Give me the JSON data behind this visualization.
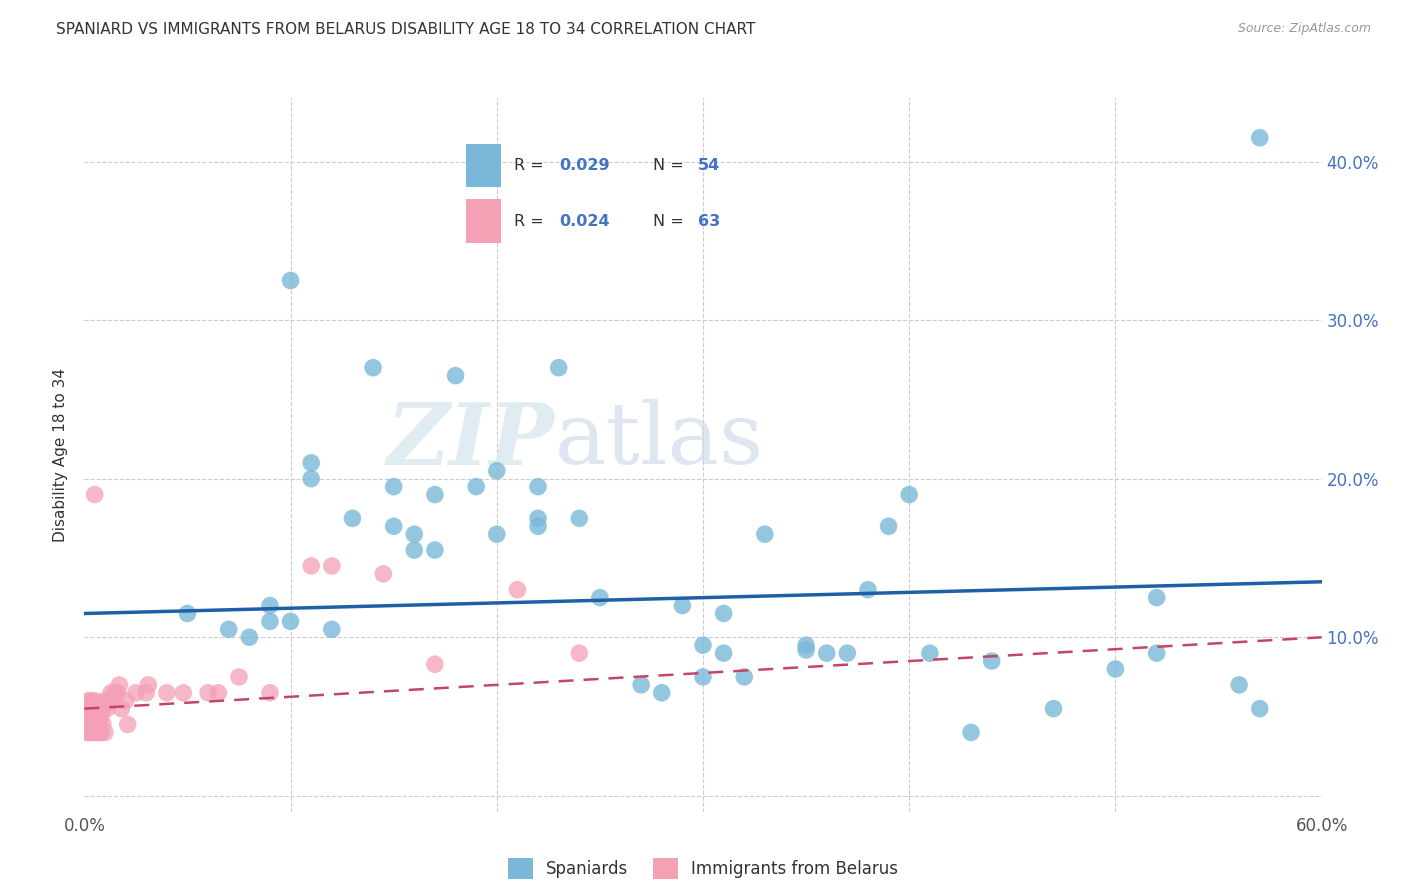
{
  "title": "SPANIARD VS IMMIGRANTS FROM BELARUS DISABILITY AGE 18 TO 34 CORRELATION CHART",
  "source": "Source: ZipAtlas.com",
  "ylabel": "Disability Age 18 to 34",
  "xlim": [
    0.0,
    0.6
  ],
  "ylim": [
    -0.01,
    0.44
  ],
  "xticks": [
    0.0,
    0.1,
    0.2,
    0.3,
    0.4,
    0.5,
    0.6
  ],
  "xticklabels": [
    "0.0%",
    "",
    "",
    "",
    "",
    "",
    "60.0%"
  ],
  "yticks": [
    0.0,
    0.1,
    0.2,
    0.3,
    0.4
  ],
  "yticklabels_right": [
    "",
    "10.0%",
    "20.0%",
    "30.0%",
    "40.0%"
  ],
  "legend_blue_r": "0.029",
  "legend_blue_n": "54",
  "legend_pink_r": "0.024",
  "legend_pink_n": "63",
  "legend_blue_label": "Spaniards",
  "legend_pink_label": "Immigrants from Belarus",
  "blue_color": "#7ab8d9",
  "pink_color": "#f4a0b5",
  "trendline_blue_color": "#1f5fa6",
  "trendline_pink_color": "#c44569",
  "watermark_zip": "ZIP",
  "watermark_atlas": "atlas",
  "background_color": "#ffffff",
  "grid_color": "#cccccc",
  "blue_scatter_x": [
    0.57,
    0.1,
    0.1,
    0.12,
    0.14,
    0.15,
    0.15,
    0.16,
    0.16,
    0.17,
    0.17,
    0.18,
    0.19,
    0.2,
    0.2,
    0.22,
    0.22,
    0.22,
    0.23,
    0.24,
    0.25,
    0.27,
    0.28,
    0.29,
    0.3,
    0.3,
    0.31,
    0.31,
    0.32,
    0.33,
    0.35,
    0.35,
    0.36,
    0.37,
    0.38,
    0.39,
    0.4,
    0.41,
    0.43,
    0.44,
    0.5,
    0.52,
    0.56,
    0.57,
    0.07,
    0.08,
    0.09,
    0.09,
    0.11,
    0.11,
    0.13,
    0.47,
    0.52,
    0.05
  ],
  "blue_scatter_y": [
    0.415,
    0.325,
    0.11,
    0.105,
    0.27,
    0.195,
    0.17,
    0.155,
    0.165,
    0.155,
    0.19,
    0.265,
    0.195,
    0.165,
    0.205,
    0.175,
    0.17,
    0.195,
    0.27,
    0.175,
    0.125,
    0.07,
    0.065,
    0.12,
    0.095,
    0.075,
    0.09,
    0.115,
    0.075,
    0.165,
    0.092,
    0.095,
    0.09,
    0.09,
    0.13,
    0.17,
    0.19,
    0.09,
    0.04,
    0.085,
    0.08,
    0.125,
    0.07,
    0.055,
    0.105,
    0.1,
    0.11,
    0.12,
    0.2,
    0.21,
    0.175,
    0.055,
    0.09,
    0.115
  ],
  "pink_scatter_x": [
    0.001,
    0.001,
    0.001,
    0.001,
    0.002,
    0.002,
    0.002,
    0.002,
    0.002,
    0.003,
    0.003,
    0.003,
    0.003,
    0.003,
    0.004,
    0.004,
    0.004,
    0.004,
    0.005,
    0.005,
    0.005,
    0.005,
    0.005,
    0.006,
    0.006,
    0.006,
    0.007,
    0.007,
    0.007,
    0.007,
    0.008,
    0.008,
    0.008,
    0.009,
    0.009,
    0.01,
    0.01,
    0.011,
    0.012,
    0.013,
    0.014,
    0.015,
    0.016,
    0.017,
    0.018,
    0.02,
    0.021,
    0.025,
    0.03,
    0.031,
    0.04,
    0.048,
    0.06,
    0.065,
    0.075,
    0.09,
    0.11,
    0.12,
    0.145,
    0.17,
    0.21,
    0.24,
    0.005
  ],
  "pink_scatter_y": [
    0.04,
    0.045,
    0.05,
    0.055,
    0.04,
    0.045,
    0.05,
    0.055,
    0.06,
    0.04,
    0.045,
    0.05,
    0.055,
    0.06,
    0.04,
    0.045,
    0.05,
    0.055,
    0.04,
    0.045,
    0.05,
    0.055,
    0.06,
    0.04,
    0.045,
    0.055,
    0.04,
    0.045,
    0.05,
    0.055,
    0.04,
    0.05,
    0.055,
    0.045,
    0.055,
    0.04,
    0.06,
    0.055,
    0.06,
    0.065,
    0.06,
    0.065,
    0.065,
    0.07,
    0.055,
    0.06,
    0.045,
    0.065,
    0.065,
    0.07,
    0.065,
    0.065,
    0.065,
    0.065,
    0.075,
    0.065,
    0.145,
    0.145,
    0.14,
    0.083,
    0.13,
    0.09,
    0.19
  ],
  "trendline_blue_x0": 0.0,
  "trendline_blue_y0": 0.115,
  "trendline_blue_x1": 0.6,
  "trendline_blue_y1": 0.135,
  "trendline_pink_x0": 0.0,
  "trendline_pink_y0": 0.055,
  "trendline_pink_x1": 0.6,
  "trendline_pink_y1": 0.1
}
